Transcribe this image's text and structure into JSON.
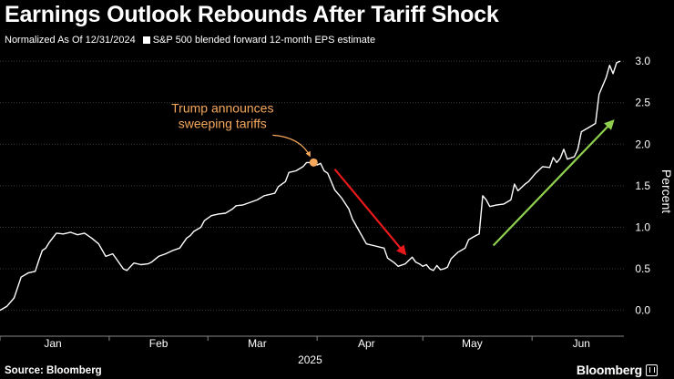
{
  "header": {
    "title": "Earnings Outlook Rebounds After Tariff Shock",
    "subtitle": "Normalized As Of 12/31/2024"
  },
  "footer": {
    "source": "Source: Bloomberg",
    "brand": "Bloomberg"
  },
  "colors": {
    "background": "#000000",
    "series": "#ffffff",
    "annotation": "#f5a85c",
    "down_arrow": "#e8191a",
    "up_arrow": "#8fd14f",
    "grid": "#3a3a3a"
  },
  "chart_data": {
    "type": "line",
    "title": "Earnings Outlook Rebounds After Tariff Shock",
    "subtitle": "Normalized As Of 12/31/2024",
    "ylabel": "Percent",
    "xlabel": "2025",
    "ylim": [
      -0.3,
      3.1
    ],
    "yticks": [
      0.0,
      0.5,
      1.0,
      1.5,
      2.0,
      2.5,
      3.0
    ],
    "ytick_labels": [
      "0.0",
      "0.5",
      "1.0",
      "1.5",
      "2.0",
      "2.5",
      "3.0"
    ],
    "xlim": [
      0,
      175
    ],
    "xticks": [
      {
        "label": "Jan",
        "day": 15
      },
      {
        "label": "Feb",
        "day": 45
      },
      {
        "label": "Mar",
        "day": 73
      },
      {
        "label": "Apr",
        "day": 104
      },
      {
        "label": "May",
        "day": 134
      },
      {
        "label": "Jun",
        "day": 165
      }
    ],
    "grid": true,
    "legend": {
      "position": "top-left",
      "entries": [
        "S&P 500 blended forward 12-month EPS estimate"
      ]
    },
    "series": [
      {
        "name": "S&P 500 blended forward 12-month EPS estimate",
        "points": [
          [
            0,
            0.0
          ],
          [
            2,
            0.05
          ],
          [
            4,
            0.15
          ],
          [
            6,
            0.4
          ],
          [
            8,
            0.45
          ],
          [
            10,
            0.47
          ],
          [
            11,
            0.6
          ],
          [
            12,
            0.72
          ],
          [
            13,
            0.75
          ],
          [
            14,
            0.82
          ],
          [
            16,
            0.93
          ],
          [
            18,
            0.92
          ],
          [
            20,
            0.94
          ],
          [
            22,
            0.91
          ],
          [
            24,
            0.93
          ],
          [
            26,
            0.87
          ],
          [
            28,
            0.8
          ],
          [
            30,
            0.65
          ],
          [
            32,
            0.68
          ],
          [
            33,
            0.62
          ],
          [
            35,
            0.5
          ],
          [
            36,
            0.48
          ],
          [
            38,
            0.57
          ],
          [
            40,
            0.55
          ],
          [
            42,
            0.56
          ],
          [
            43,
            0.58
          ],
          [
            45,
            0.65
          ],
          [
            47,
            0.68
          ],
          [
            49,
            0.72
          ],
          [
            51,
            0.75
          ],
          [
            53,
            0.87
          ],
          [
            54,
            0.9
          ],
          [
            55,
            0.95
          ],
          [
            57,
            1.0
          ],
          [
            58,
            1.08
          ],
          [
            60,
            1.14
          ],
          [
            62,
            1.16
          ],
          [
            64,
            1.17
          ],
          [
            66,
            1.22
          ],
          [
            67,
            1.26
          ],
          [
            69,
            1.27
          ],
          [
            71,
            1.3
          ],
          [
            73,
            1.33
          ],
          [
            75,
            1.38
          ],
          [
            77,
            1.4
          ],
          [
            78,
            1.41
          ],
          [
            79,
            1.49
          ],
          [
            81,
            1.55
          ],
          [
            82,
            1.66
          ],
          [
            84,
            1.68
          ],
          [
            86,
            1.73
          ],
          [
            87,
            1.78
          ],
          [
            88,
            1.78
          ],
          [
            89,
            1.79
          ],
          [
            90,
            1.75
          ],
          [
            91,
            1.77
          ],
          [
            92,
            1.68
          ],
          [
            93,
            1.65
          ],
          [
            95,
            1.45
          ],
          [
            97,
            1.35
          ],
          [
            99,
            1.22
          ],
          [
            100,
            1.1
          ],
          [
            102,
            0.95
          ],
          [
            104,
            0.8
          ],
          [
            106,
            0.78
          ],
          [
            108,
            0.76
          ],
          [
            109,
            0.75
          ],
          [
            110,
            0.63
          ],
          [
            112,
            0.57
          ],
          [
            113,
            0.53
          ],
          [
            115,
            0.56
          ],
          [
            116,
            0.6
          ],
          [
            117,
            0.64
          ],
          [
            118,
            0.58
          ],
          [
            119,
            0.56
          ],
          [
            120,
            0.53
          ],
          [
            121,
            0.55
          ],
          [
            122,
            0.5
          ],
          [
            123,
            0.48
          ],
          [
            124,
            0.54
          ],
          [
            125,
            0.49
          ],
          [
            126,
            0.5
          ],
          [
            127,
            0.52
          ],
          [
            128,
            0.62
          ],
          [
            130,
            0.7
          ],
          [
            132,
            0.75
          ],
          [
            133,
            0.85
          ],
          [
            135,
            0.9
          ],
          [
            136,
            0.92
          ],
          [
            137,
            1.38
          ],
          [
            138,
            1.33
          ],
          [
            139,
            1.25
          ],
          [
            141,
            1.27
          ],
          [
            143,
            1.28
          ],
          [
            145,
            1.33
          ],
          [
            146,
            1.52
          ],
          [
            147,
            1.44
          ],
          [
            149,
            1.52
          ],
          [
            150,
            1.55
          ],
          [
            152,
            1.65
          ],
          [
            154,
            1.73
          ],
          [
            156,
            1.72
          ],
          [
            157,
            1.84
          ],
          [
            158,
            1.78
          ],
          [
            159,
            1.83
          ],
          [
            160,
            1.94
          ],
          [
            161,
            1.82
          ],
          [
            163,
            1.85
          ],
          [
            164,
            1.94
          ],
          [
            165,
            2.15
          ],
          [
            167,
            2.2
          ],
          [
            169,
            2.25
          ],
          [
            170,
            2.6
          ],
          [
            171,
            2.7
          ],
          [
            172,
            2.8
          ],
          [
            173,
            2.95
          ],
          [
            174,
            2.85
          ],
          [
            175,
            2.98
          ],
          [
            176,
            3.0
          ]
        ]
      }
    ],
    "annotations": [
      {
        "text_lines": [
          "Trump announces",
          "sweeping tariffs"
        ],
        "day": 89,
        "value": 1.78,
        "kind": "marker"
      },
      {
        "kind": "arrow",
        "from": {
          "day": 95,
          "value": 1.7
        },
        "to": {
          "day": 115,
          "value": 0.68
        },
        "color_key": "down_arrow"
      },
      {
        "kind": "arrow",
        "from": {
          "day": 140,
          "value": 0.78
        },
        "to": {
          "day": 174,
          "value": 2.28
        },
        "color_key": "up_arrow"
      }
    ]
  }
}
